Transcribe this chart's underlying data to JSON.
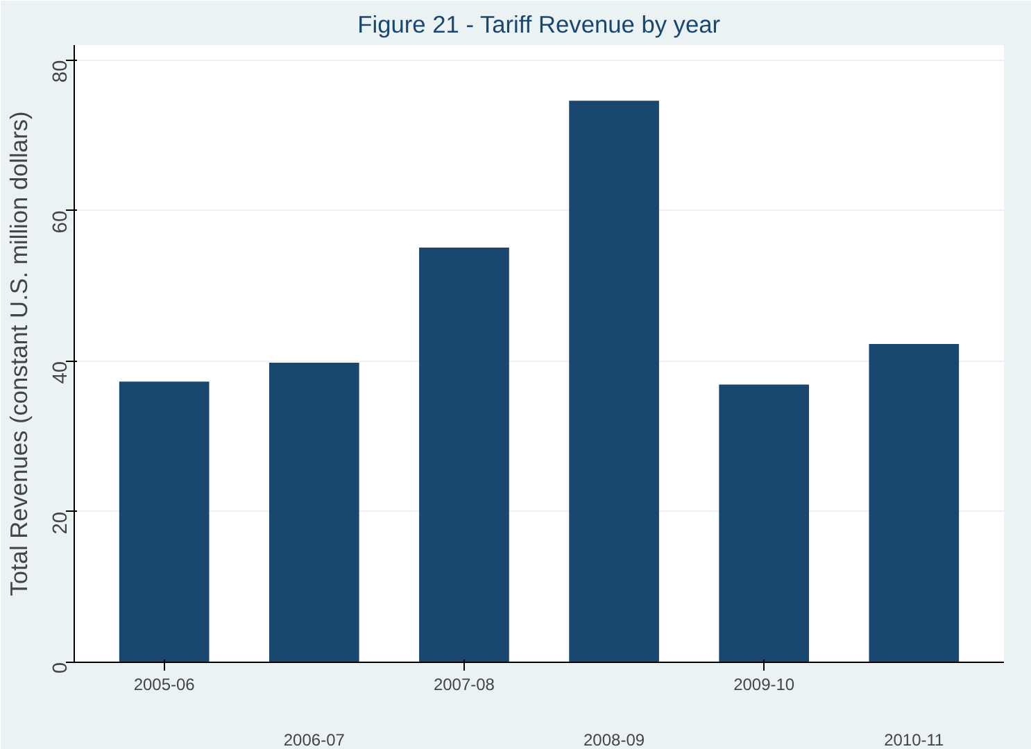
{
  "chart_data": {
    "type": "bar",
    "title": "Figure 21 - Tariff Revenue by year",
    "ylabel": "Total Revenues (constant U.S. million dollars)",
    "categories": [
      "2005-06",
      "2006-07",
      "2007-08",
      "2008-09",
      "2009-10",
      "2010-11"
    ],
    "values": [
      37.3,
      39.8,
      55.1,
      74.6,
      36.9,
      42.3
    ],
    "color": "#1a476f",
    "ylim": [
      0,
      82
    ],
    "yticks": [
      0,
      20,
      40,
      60,
      80
    ],
    "grid": "y"
  }
}
